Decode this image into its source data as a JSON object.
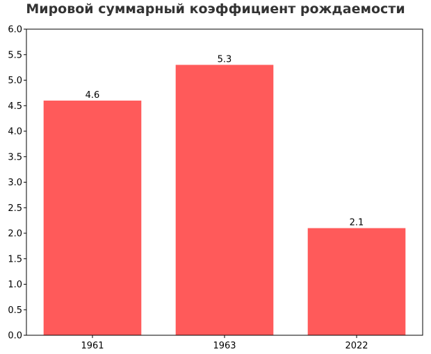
{
  "chart_data": {
    "type": "bar",
    "title": "Мировой суммарный коэффициент рождаемости",
    "xlabel": "",
    "ylabel": "",
    "categories": [
      "1961",
      "1963",
      "2022"
    ],
    "values": [
      4.6,
      5.3,
      2.1
    ],
    "data_labels": [
      "4.6",
      "5.3",
      "2.1"
    ],
    "ylim": [
      0,
      6.0
    ],
    "yticks": [
      "0.0",
      "0.5",
      "1.0",
      "1.5",
      "2.0",
      "2.5",
      "3.0",
      "3.5",
      "4.0",
      "4.5",
      "5.0",
      "5.5",
      "6.0"
    ],
    "grid": false,
    "legend": "none",
    "bar_color": "#ff5a5a",
    "axis_color": "#000000"
  }
}
